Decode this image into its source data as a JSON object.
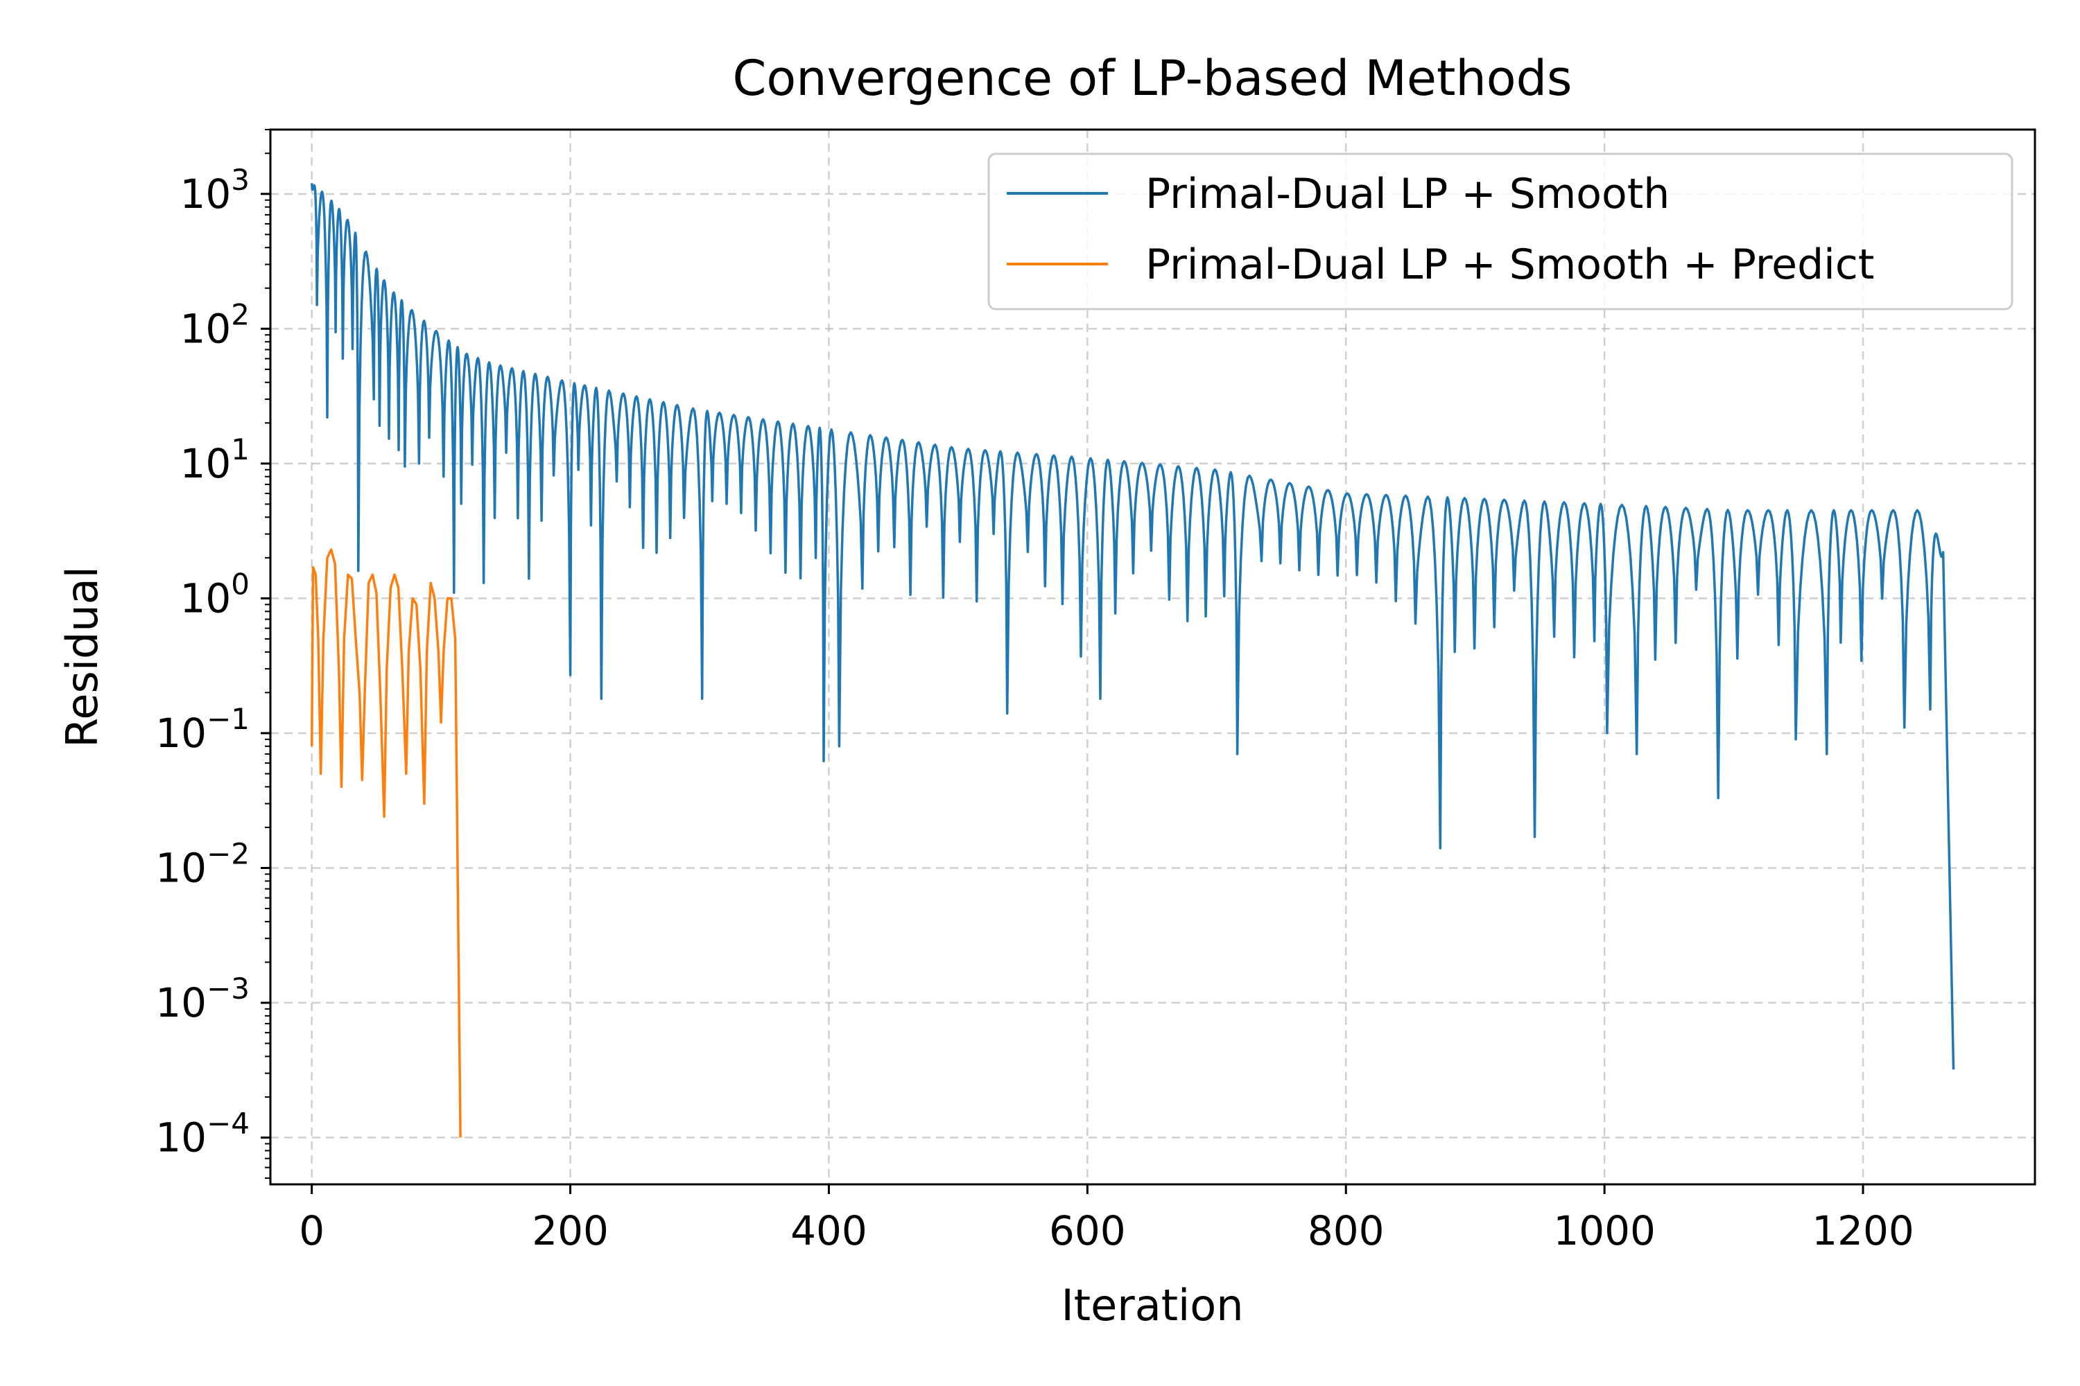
{
  "chart_data": {
    "type": "line",
    "title": "Convergence of LP-based Methods",
    "xlabel": "Iteration",
    "ylabel": "Residual",
    "xlim": [
      -32,
      1333
    ],
    "xticks": [
      0,
      200,
      400,
      600,
      800,
      1000,
      1200
    ],
    "ylim": [
      4.5e-05,
      3000
    ],
    "yscale": "log",
    "ytick_exponents": [
      3,
      2,
      1,
      0,
      -1,
      -2,
      -3,
      -4
    ],
    "ytick_base": "10",
    "grid": true,
    "legend_position": "top-right",
    "series": [
      {
        "name": "Primal-Dual LP + Smooth",
        "color": "#1f77b4",
        "envelope": [
          [
            0,
            1200
          ],
          [
            10,
            1000
          ],
          [
            20,
            800
          ],
          [
            30,
            600
          ],
          [
            40,
            400
          ],
          [
            50,
            280
          ],
          [
            60,
            200
          ],
          [
            80,
            130
          ],
          [
            100,
            90
          ],
          [
            120,
            65
          ],
          [
            140,
            55
          ],
          [
            200,
            40
          ],
          [
            300,
            25
          ],
          [
            400,
            18
          ],
          [
            500,
            13
          ],
          [
            600,
            11
          ],
          [
            700,
            9
          ],
          [
            800,
            6
          ],
          [
            900,
            5.5
          ],
          [
            1000,
            5
          ],
          [
            1100,
            4.5
          ],
          [
            1200,
            4.5
          ],
          [
            1250,
            4.5
          ],
          [
            1262,
            2.2
          ]
        ],
        "period_points": [
          [
            0,
            6
          ],
          [
            80,
            8
          ],
          [
            150,
            9
          ],
          [
            300,
            11
          ],
          [
            500,
            13
          ],
          [
            800,
            15
          ],
          [
            1100,
            16
          ],
          [
            1262,
            16
          ]
        ],
        "dips": [
          [
            0,
            1200
          ],
          [
            4,
            150
          ],
          [
            12,
            22
          ],
          [
            24,
            60
          ],
          [
            36,
            1.6
          ],
          [
            48,
            30
          ],
          [
            72,
            9.5
          ],
          [
            83,
            10
          ],
          [
            102,
            8
          ],
          [
            110,
            1.1
          ],
          [
            133,
            1.3
          ],
          [
            168,
            1.4
          ],
          [
            200,
            0.27
          ],
          [
            224,
            0.18
          ],
          [
            302,
            0.18
          ],
          [
            396,
            0.062
          ],
          [
            408,
            0.08
          ],
          [
            538,
            0.14
          ],
          [
            595,
            0.37
          ],
          [
            610,
            0.18
          ],
          [
            716,
            0.07
          ],
          [
            873,
            0.014
          ],
          [
            946,
            0.017
          ],
          [
            1002,
            0.1
          ],
          [
            1025,
            0.07
          ],
          [
            1088,
            0.033
          ],
          [
            1148,
            0.09
          ],
          [
            1172,
            0.07
          ],
          [
            1232,
            0.11
          ],
          [
            1252,
            0.15
          ],
          [
            1265,
            0.3
          ],
          [
            1270,
            0.00032
          ]
        ]
      },
      {
        "name": "Primal-Dual LP + Smooth + Predict",
        "color": "#ff7f0e",
        "points": [
          [
            0,
            0.08
          ],
          [
            1,
            1.7
          ],
          [
            3,
            1.5
          ],
          [
            5,
            0.5
          ],
          [
            7,
            0.05
          ],
          [
            9,
            0.5
          ],
          [
            12,
            2.0
          ],
          [
            15,
            2.3
          ],
          [
            18,
            1.8
          ],
          [
            21,
            0.3
          ],
          [
            23,
            0.04
          ],
          [
            25,
            0.5
          ],
          [
            28,
            1.5
          ],
          [
            31,
            1.4
          ],
          [
            34,
            0.5
          ],
          [
            37,
            0.2
          ],
          [
            39,
            0.045
          ],
          [
            41,
            0.2
          ],
          [
            44,
            1.3
          ],
          [
            47,
            1.5
          ],
          [
            50,
            1.1
          ],
          [
            53,
            0.2
          ],
          [
            56,
            0.024
          ],
          [
            58,
            0.3
          ],
          [
            61,
            1.2
          ],
          [
            64,
            1.5
          ],
          [
            67,
            1.2
          ],
          [
            70,
            0.3
          ],
          [
            73,
            0.05
          ],
          [
            75,
            0.4
          ],
          [
            78,
            1.0
          ],
          [
            81,
            0.9
          ],
          [
            84,
            0.3
          ],
          [
            87,
            0.03
          ],
          [
            89,
            0.4
          ],
          [
            92,
            1.3
          ],
          [
            95,
            1.0
          ],
          [
            98,
            0.4
          ],
          [
            100,
            0.12
          ],
          [
            102,
            0.4
          ],
          [
            105,
            1.0
          ],
          [
            108,
            1.0
          ],
          [
            111,
            0.5
          ],
          [
            115,
            0.0001
          ]
        ]
      }
    ]
  }
}
